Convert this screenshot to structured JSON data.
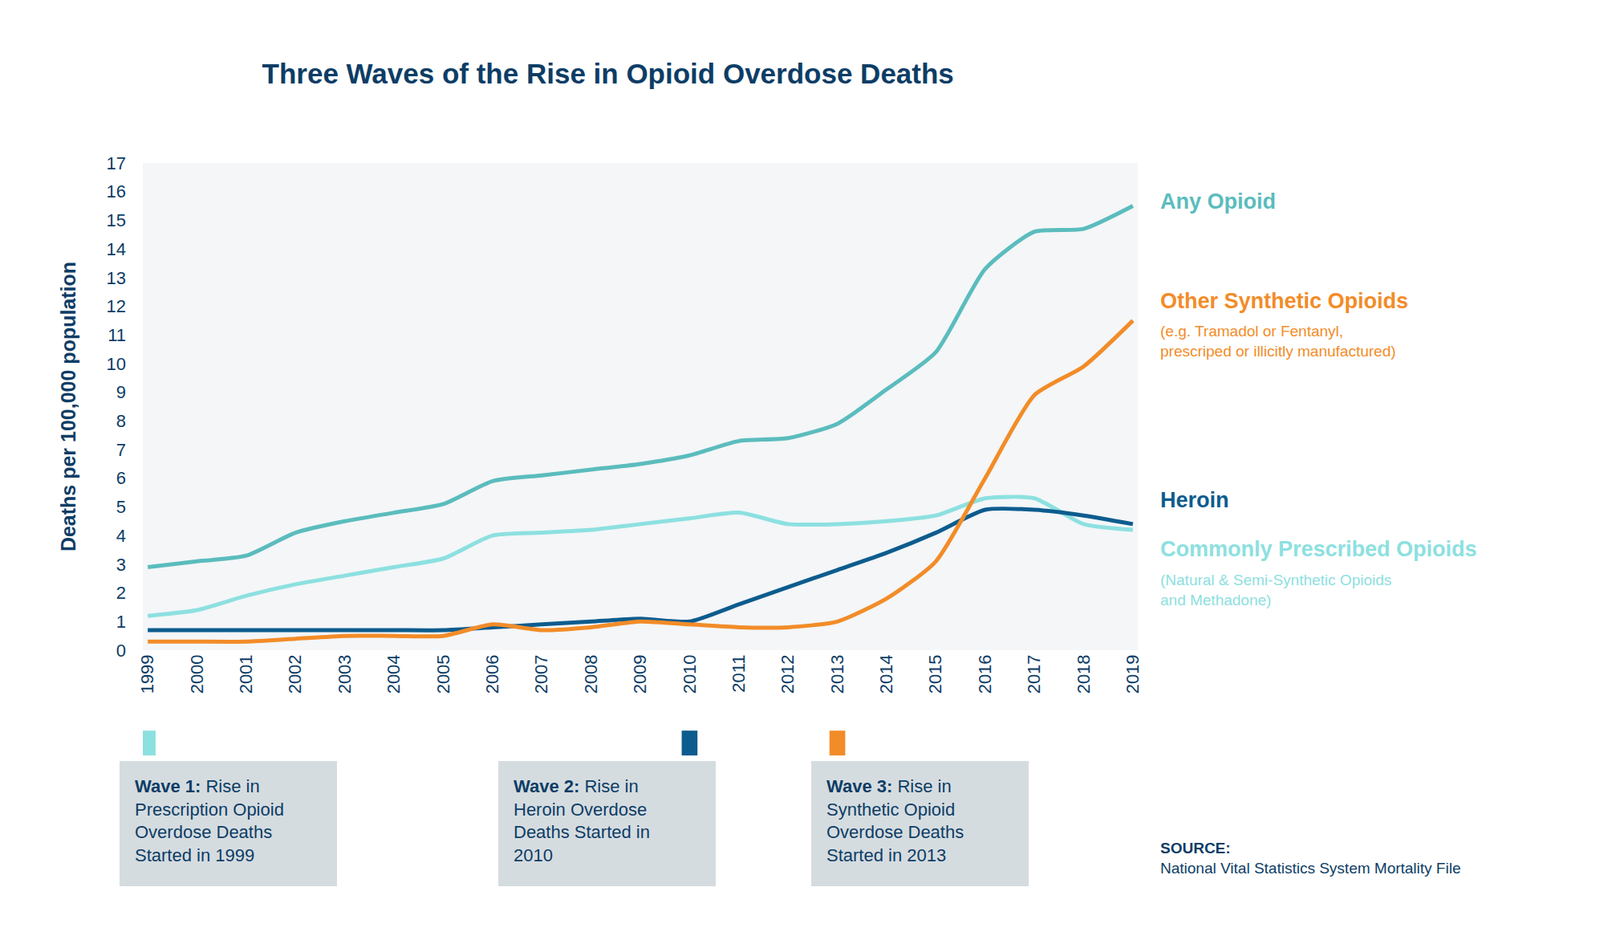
{
  "chart_data": {
    "type": "line",
    "title": "Three Waves of the Rise in Opioid Overdose Deaths",
    "y_label": "Deaths per 100,000 population",
    "categories": [
      "1999",
      "2000",
      "2001",
      "2002",
      "2003",
      "2004",
      "2005",
      "2006",
      "2007",
      "2008",
      "2009",
      "2010",
      "2011",
      "2012",
      "2013",
      "2014",
      "2015",
      "2016",
      "2017",
      "2018",
      "2019"
    ],
    "series": [
      {
        "name": "Any Opioid",
        "color": "#5bbcbd",
        "values": [
          2.9,
          3.1,
          3.3,
          4.1,
          4.5,
          4.8,
          5.1,
          5.9,
          6.1,
          6.3,
          6.5,
          6.8,
          7.3,
          7.4,
          7.9,
          9.1,
          10.4,
          13.3,
          14.6,
          14.7,
          15.5
        ]
      },
      {
        "name": "Other Synthetic Opioids",
        "color": "#f28c28",
        "note": [
          "(e.g. Tramadol or Fentanyl,",
          "prescriped or illicitly manufactured)"
        ],
        "values": [
          0.3,
          0.3,
          0.3,
          0.4,
          0.5,
          0.5,
          0.5,
          0.9,
          0.7,
          0.8,
          1.0,
          0.9,
          0.8,
          0.8,
          1.0,
          1.8,
          3.1,
          6.0,
          8.9,
          9.9,
          11.5
        ]
      },
      {
        "name": "Heroin",
        "color": "#0d5c8e",
        "values": [
          0.7,
          0.7,
          0.7,
          0.7,
          0.7,
          0.7,
          0.7,
          0.8,
          0.9,
          1.0,
          1.1,
          1.0,
          1.6,
          2.2,
          2.8,
          3.4,
          4.1,
          4.9,
          4.9,
          4.7,
          4.4
        ]
      },
      {
        "name": "Commonly Prescribed Opioids",
        "color": "#8de0e0",
        "note": [
          "(Natural & Semi-Synthetic Opioids",
          "and Methadone)"
        ],
        "values": [
          1.2,
          1.4,
          1.9,
          2.3,
          2.6,
          2.9,
          3.2,
          4.0,
          4.1,
          4.2,
          4.4,
          4.6,
          4.8,
          4.4,
          4.4,
          4.5,
          4.7,
          5.3,
          5.3,
          4.4,
          4.2
        ]
      }
    ],
    "ylim": [
      0,
      17
    ],
    "yticks": [
      0,
      1,
      2,
      3,
      4,
      5,
      6,
      7,
      8,
      9,
      10,
      11,
      12,
      13,
      14,
      15,
      16,
      17
    ],
    "grid": false,
    "line_style": "solid",
    "waves": [
      {
        "label": "Wave 1:",
        "lines": [
          "Rise in",
          "Prescription Opioid",
          "Overdose Deaths",
          "Started in 1999"
        ],
        "x": "1999",
        "color": "#8de0e0"
      },
      {
        "label": "Wave 2:",
        "lines": [
          "Rise in",
          "Heroin Overdose",
          "Deaths Started in",
          "2010"
        ],
        "x": "2010",
        "color": "#0d5c8e"
      },
      {
        "label": "Wave 3:",
        "lines": [
          "Rise in",
          "Synthetic Opioid",
          "Overdose Deaths",
          "Started in 2013"
        ],
        "x": "2013",
        "color": "#f28c28"
      }
    ],
    "source": {
      "label": "SOURCE:",
      "text": "National Vital Statistics System Mortality File"
    }
  }
}
